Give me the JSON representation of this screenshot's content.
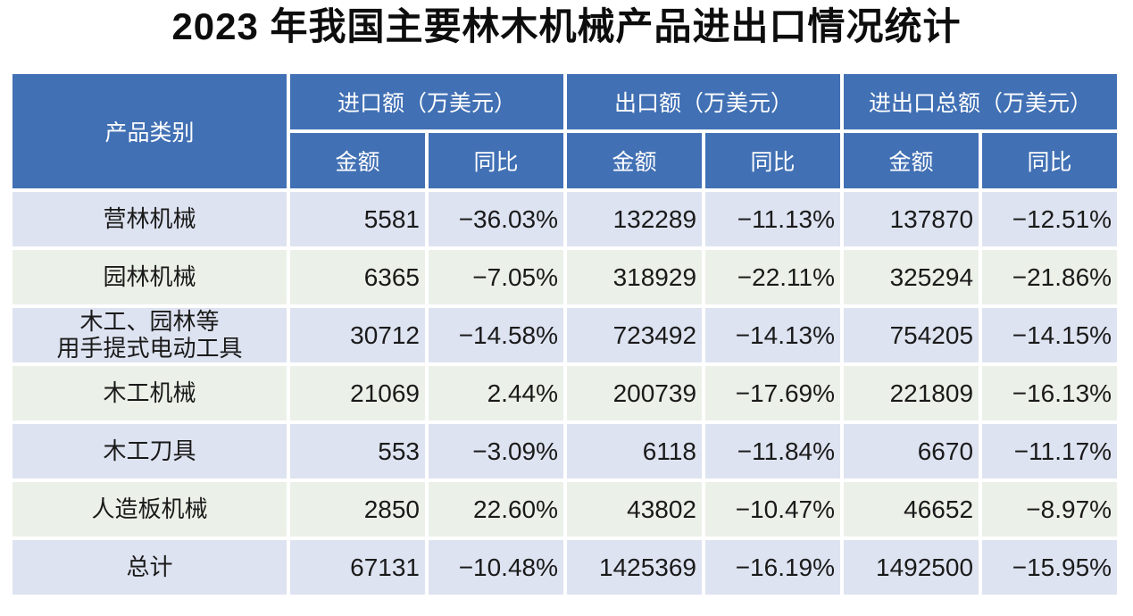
{
  "page": {
    "title": "2023 年我国主要林木机械产品进出口情况统计"
  },
  "table": {
    "product_header": "产品类别",
    "groups": [
      {
        "label": "进口额（万美元）"
      },
      {
        "label": "出口额（万美元）"
      },
      {
        "label": "进出口总额（万美元）"
      }
    ],
    "subheaders": {
      "amount": "金额",
      "yoy": "同比"
    },
    "rows": [
      {
        "product": "营林机械",
        "import_amount": "5581",
        "import_yoy": "−36.03%",
        "export_amount": "132289",
        "export_yoy": "−11.13%",
        "total_amount": "137870",
        "total_yoy": "−12.51%"
      },
      {
        "product": "园林机械",
        "import_amount": "6365",
        "import_yoy": "−7.05%",
        "export_amount": "318929",
        "export_yoy": "−22.11%",
        "total_amount": "325294",
        "total_yoy": "−21.86%"
      },
      {
        "product": "木工、园林等\n用手提式电动工具",
        "import_amount": "30712",
        "import_yoy": "−14.58%",
        "export_amount": "723492",
        "export_yoy": "−14.13%",
        "total_amount": "754205",
        "total_yoy": "−14.15%"
      },
      {
        "product": "木工机械",
        "import_amount": "21069",
        "import_yoy": "2.44%",
        "export_amount": "200739",
        "export_yoy": "−17.69%",
        "total_amount": "221809",
        "total_yoy": "−16.13%"
      },
      {
        "product": "木工刀具",
        "import_amount": "553",
        "import_yoy": "−3.09%",
        "export_amount": "6118",
        "export_yoy": "−11.84%",
        "total_amount": "6670",
        "total_yoy": "−11.17%"
      },
      {
        "product": "人造板机械",
        "import_amount": "2850",
        "import_yoy": "22.60%",
        "export_amount": "43802",
        "export_yoy": "−10.47%",
        "total_amount": "46652",
        "total_yoy": "−8.97%"
      },
      {
        "product": "总计",
        "import_amount": "67131",
        "import_yoy": "−10.48%",
        "export_amount": "1425369",
        "export_yoy": "−16.19%",
        "total_amount": "1492500",
        "total_yoy": "−15.95%"
      }
    ]
  },
  "colors": {
    "header_bg": "#4170b4",
    "header_text": "#ffffff",
    "row_blue": "#dee3f1",
    "row_green": "#ebf1e8",
    "gridline": "#ffffff",
    "body_text": "#1a1a1a",
    "title_text": "#0d0d0d"
  },
  "chart_data": {
    "type": "table",
    "title": "2023 年我国主要林木机械产品进出口情况统计",
    "column_groups": [
      "进口额（万美元）",
      "出口额（万美元）",
      "进出口总额（万美元）"
    ],
    "columns": [
      "产品类别",
      "进口额-金额",
      "进口额-同比",
      "出口额-金额",
      "出口额-同比",
      "进出口总额-金额",
      "进出口总额-同比"
    ],
    "rows": [
      [
        "营林机械",
        5581,
        "-36.03%",
        132289,
        "-11.13%",
        137870,
        "-12.51%"
      ],
      [
        "园林机械",
        6365,
        "-7.05%",
        318929,
        "-22.11%",
        325294,
        "-21.86%"
      ],
      [
        "木工、园林等用手提式电动工具",
        30712,
        "-14.58%",
        723492,
        "-14.13%",
        754205,
        "-14.15%"
      ],
      [
        "木工机械",
        21069,
        "2.44%",
        200739,
        "-17.69%",
        221809,
        "-16.13%"
      ],
      [
        "木工刀具",
        553,
        "-3.09%",
        6118,
        "-11.84%",
        6670,
        "-11.17%"
      ],
      [
        "人造板机械",
        2850,
        "22.60%",
        43802,
        "-10.47%",
        46652,
        "-8.97%"
      ],
      [
        "总计",
        67131,
        "-10.48%",
        1425369,
        "-16.19%",
        1492500,
        "-15.95%"
      ]
    ],
    "units": "万美元",
    "notes": "amount columns right-aligned; header row blue with white text; rows alternate light-blue / light-green"
  }
}
